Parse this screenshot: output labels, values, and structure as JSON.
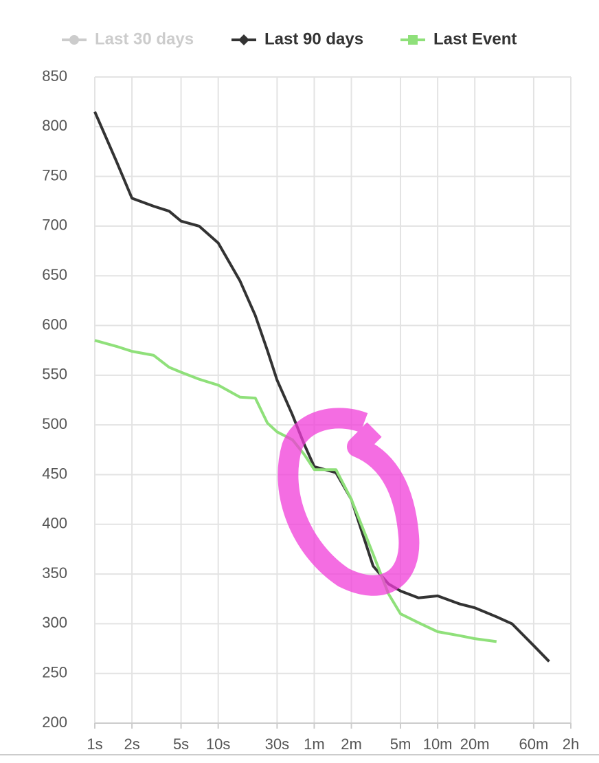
{
  "chart_data": {
    "type": "line",
    "x": [
      1,
      1.5,
      2,
      3,
      4,
      5,
      7,
      10,
      15,
      20,
      25,
      30,
      40,
      50,
      60,
      90,
      120,
      180,
      240,
      300,
      420,
      600,
      900,
      1200,
      1800,
      2400,
      3600,
      4800
    ],
    "series": [
      {
        "name": "Last 30 days",
        "color": "#cccccc",
        "marker": "circle",
        "hidden": true,
        "values": [
          null,
          null,
          null,
          null,
          null,
          null,
          null,
          null,
          null,
          null,
          null,
          null,
          null,
          null,
          null,
          null,
          null,
          null,
          null,
          null,
          null,
          null,
          null,
          null,
          null,
          null,
          null,
          null
        ]
      },
      {
        "name": "Last 90 days",
        "color": "#333333",
        "marker": "diamond",
        "hidden": false,
        "values": [
          815,
          765,
          728,
          720,
          715,
          705,
          700,
          683,
          645,
          610,
          575,
          545,
          510,
          480,
          458,
          452,
          425,
          358,
          340,
          333,
          326,
          328,
          320,
          316,
          307,
          300,
          278,
          262
        ]
      },
      {
        "name": "Last Event",
        "color": "#8fe07a",
        "marker": "square",
        "hidden": false,
        "values": [
          585,
          579,
          574,
          570,
          558,
          553,
          546,
          540,
          528,
          527,
          502,
          493,
          485,
          470,
          455,
          455,
          425,
          370,
          330,
          310,
          301,
          292,
          288,
          285,
          282,
          null,
          null,
          null
        ]
      }
    ],
    "xscale": "log",
    "xlim": [
      1,
      7200
    ],
    "xticks": [
      {
        "value": 1,
        "label": "1s"
      },
      {
        "value": 2,
        "label": "2s"
      },
      {
        "value": 5,
        "label": "5s"
      },
      {
        "value": 10,
        "label": "10s"
      },
      {
        "value": 30,
        "label": "30s"
      },
      {
        "value": 60,
        "label": "1m"
      },
      {
        "value": 120,
        "label": "2m"
      },
      {
        "value": 300,
        "label": "5m"
      },
      {
        "value": 600,
        "label": "10m"
      },
      {
        "value": 1200,
        "label": "20m"
      },
      {
        "value": 3600,
        "label": "60m"
      },
      {
        "value": 7200,
        "label": "2h"
      }
    ],
    "ylim": [
      200,
      850
    ],
    "yticks": [
      200,
      250,
      300,
      350,
      400,
      450,
      500,
      550,
      600,
      650,
      700,
      750,
      800,
      850
    ],
    "grid": true,
    "legend": "top"
  }
}
